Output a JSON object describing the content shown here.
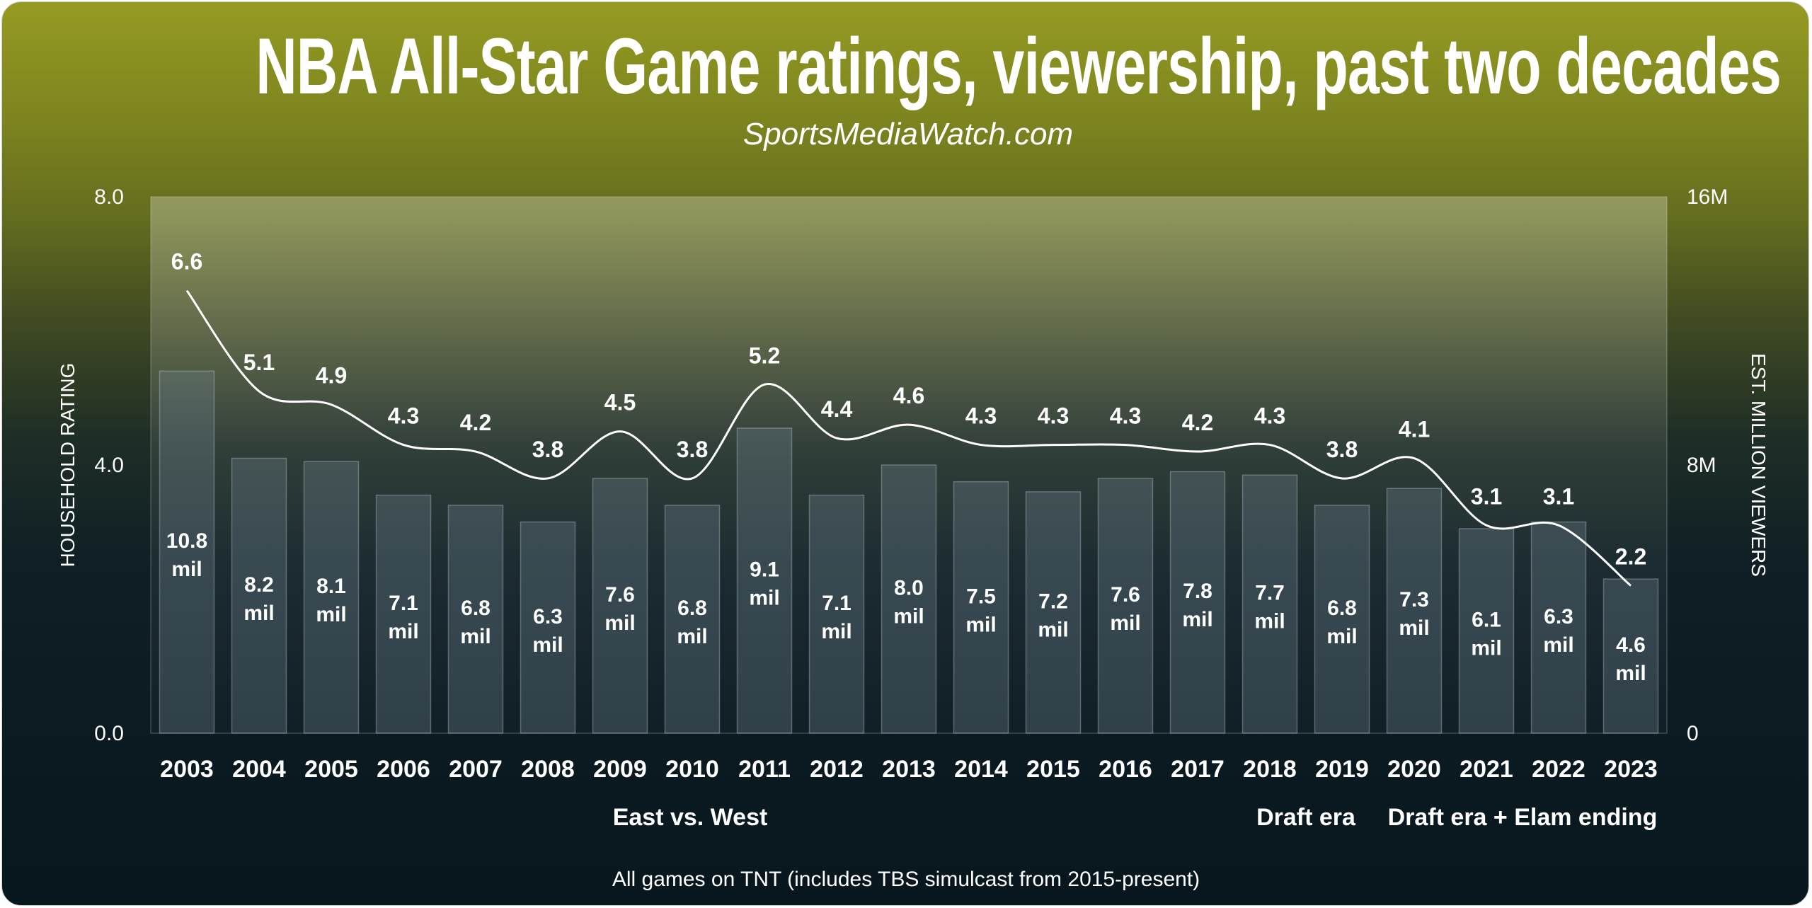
{
  "chart_data": {
    "type": "bar+line",
    "title": "NBA All-Star Game ratings, viewership, past two decades",
    "subtitle": "SportsMediaWatch.com",
    "categories": [
      "2003",
      "2004",
      "2005",
      "2006",
      "2007",
      "2008",
      "2009",
      "2010",
      "2011",
      "2012",
      "2013",
      "2014",
      "2015",
      "2016",
      "2017",
      "2018",
      "2019",
      "2020",
      "2021",
      "2022",
      "2023"
    ],
    "series": [
      {
        "name": "HOUSEHOLD RATING",
        "type": "line",
        "axis": "left",
        "values": [
          6.6,
          5.1,
          4.9,
          4.3,
          4.2,
          3.8,
          4.5,
          3.8,
          5.2,
          4.4,
          4.6,
          4.3,
          4.3,
          4.3,
          4.2,
          4.3,
          3.8,
          4.1,
          3.1,
          3.1,
          2.2
        ],
        "labels": [
          "6.6",
          "5.1",
          "4.9",
          "4.3",
          "4.2",
          "3.8",
          "4.5",
          "3.8",
          "5.2",
          "4.4",
          "4.6",
          "4.3",
          "4.3",
          "4.3",
          "4.2",
          "4.3",
          "3.8",
          "4.1",
          "3.1",
          "3.1",
          "2.2"
        ]
      },
      {
        "name": "EST. MILLION VIEWERS",
        "type": "bar",
        "axis": "right",
        "values": [
          10.8,
          8.2,
          8.1,
          7.1,
          6.8,
          6.3,
          7.6,
          6.8,
          9.1,
          7.1,
          8.0,
          7.5,
          7.2,
          7.6,
          7.8,
          7.7,
          6.8,
          7.3,
          6.1,
          6.3,
          4.6
        ],
        "labels": [
          "10.8",
          "8.2",
          "8.1",
          "7.1",
          "6.8",
          "6.3",
          "7.6",
          "6.8",
          "9.1",
          "7.1",
          "8.0",
          "7.5",
          "7.2",
          "7.6",
          "7.8",
          "7.7",
          "6.8",
          "7.3",
          "6.1",
          "6.3",
          "4.6"
        ],
        "unit": "mil"
      }
    ],
    "ylabel_left": "HOUSEHOLD RATING",
    "ylabel_right": "EST. MILLION VIEWERS",
    "ylim_left": [
      0,
      8
    ],
    "ylim_right": [
      0,
      16
    ],
    "yticks_left": [
      "0.0",
      "4.0",
      "8.0"
    ],
    "yticks_right": [
      "0",
      "8M",
      "16M"
    ],
    "eras": [
      {
        "label": "East vs. West",
        "from": "2003",
        "to": "2017"
      },
      {
        "label": "Draft era",
        "from": "2018",
        "to": "2019"
      },
      {
        "label": "Draft era + Elam ending",
        "from": "2020",
        "to": "2023"
      }
    ],
    "footnote": "All games on TNT (includes TBS simulcast from 2015-present)",
    "grid": false,
    "colors": {
      "background_top": "#959b22",
      "background_bottom": "#08161e",
      "bar": "#5a6a72",
      "line": "#ffffff"
    }
  }
}
